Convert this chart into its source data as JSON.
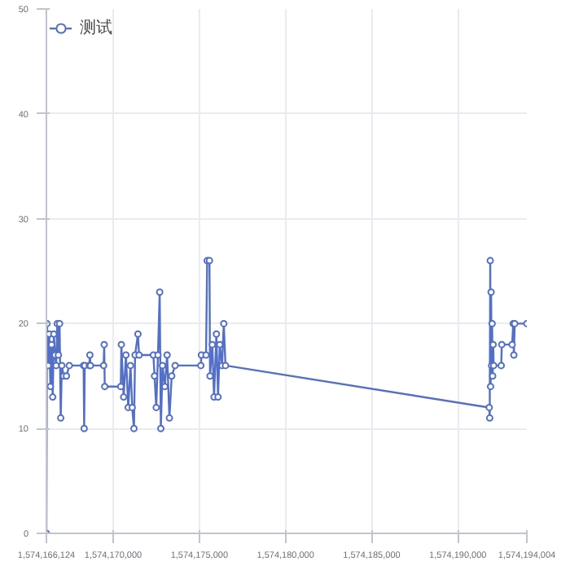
{
  "chart_data": {
    "type": "line",
    "x": [
      1574166124,
      1574166157,
      1574166224,
      1574166290,
      1574166356,
      1574166423,
      1574166489,
      1574166556,
      1574166622,
      1574166688,
      1574166755,
      1574166821,
      1574166888,
      1574166954,
      1574167020,
      1574167120,
      1574167286,
      1574167452,
      1574168282,
      1574168315,
      1574168348,
      1574168614,
      1574168647,
      1574168680,
      1574169444,
      1574169477,
      1574169510,
      1574170440,
      1574170473,
      1574170606,
      1574170739,
      1574170872,
      1574171004,
      1574171104,
      1574171204,
      1574171270,
      1574171436,
      1574171502,
      1574172332,
      1574172399,
      1574172498,
      1574172598,
      1574172698,
      1574172764,
      1574172864,
      1574172996,
      1574173129,
      1574173262,
      1574173395,
      1574173594,
      1574175088,
      1574175121,
      1574175387,
      1574175453,
      1574175586,
      1574175619,
      1574175752,
      1574175852,
      1574175988,
      1574176084,
      1574176184,
      1574176316,
      1574176416,
      1574176516,
      1574191821,
      1574191850,
      1574191880,
      1574191900,
      1574191930,
      1574191960,
      1574191990,
      1574192020,
      1574192050,
      1574192080,
      1574192518,
      1574192550,
      1574193150,
      1574193215,
      1574193250,
      1574193300,
      1574194004
    ],
    "series": [
      {
        "name": "测试",
        "color": "#5470c6",
        "values": [
          0,
          20,
          16,
          19,
          14,
          18,
          13,
          19,
          17,
          16,
          20,
          17,
          20,
          11,
          16,
          15,
          15,
          16,
          16,
          10,
          16,
          16,
          17,
          16,
          16,
          18,
          14,
          14,
          18,
          13,
          17,
          12,
          16,
          12,
          10,
          17,
          19,
          17,
          17,
          15,
          12,
          17,
          23,
          10,
          16,
          14,
          17,
          11,
          15,
          16,
          16,
          17,
          17,
          26,
          26,
          15,
          18,
          13,
          19,
          13,
          18,
          16,
          20,
          16,
          12,
          11,
          26,
          14,
          23,
          16,
          20,
          15,
          18,
          16,
          16,
          18,
          18,
          20,
          17,
          20,
          20
        ]
      }
    ],
    "xlim": [
      1574166124,
      1574194004
    ],
    "xticks": [
      {
        "value": 1574166124,
        "label": "1,574,166,124"
      },
      {
        "value": 1574170000,
        "label": "1,574,170,000"
      },
      {
        "value": 1574175000,
        "label": "1,574,175,000"
      },
      {
        "value": 1574180000,
        "label": "1,574,180,000"
      },
      {
        "value": 1574185000,
        "label": "1,574,185,000"
      },
      {
        "value": 1574190000,
        "label": "1,574,190,000"
      },
      {
        "value": 1574194004,
        "label": "1,574,194,004"
      }
    ],
    "ylim": [
      0,
      50
    ],
    "yticks": [
      0,
      10,
      20,
      30,
      40,
      50
    ],
    "grid": true,
    "legend": "top left",
    "marker": "circle",
    "line_style": "solid"
  }
}
